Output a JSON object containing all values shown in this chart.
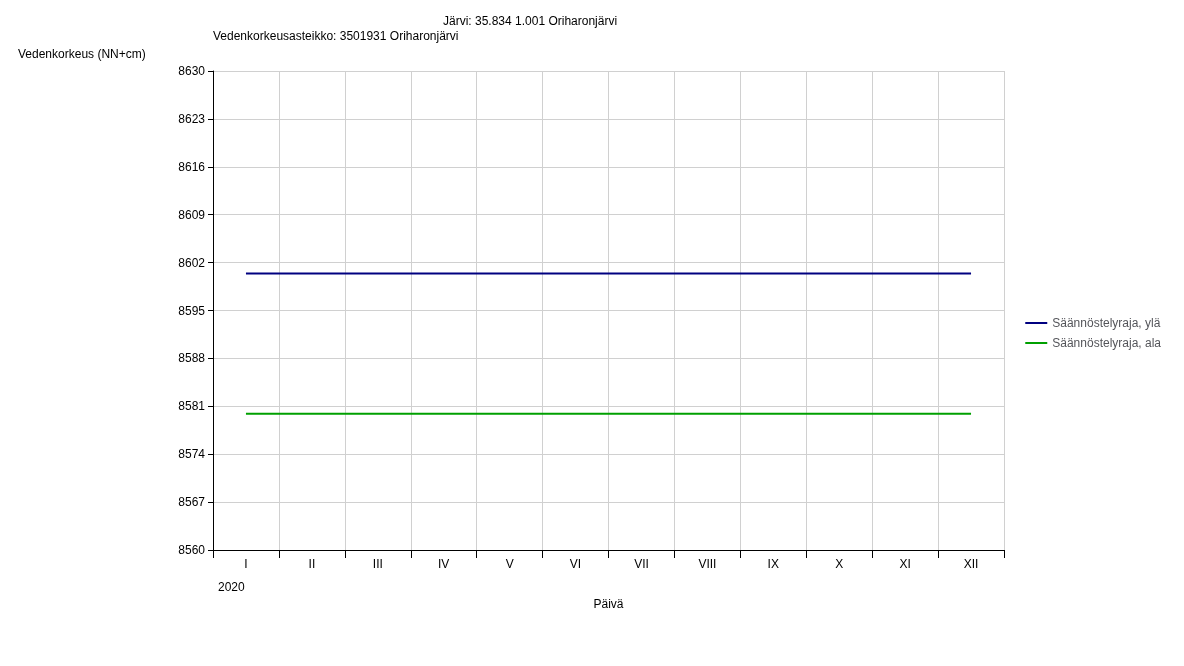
{
  "chart_data": {
    "type": "line",
    "title": "Järvi: 35.834 1.001 Oriharonjärvi",
    "subtitle": "Vedenkorkeusasteikko: 3501931 Oriharonjärvi",
    "ylabel": "Vedenkorkeus (NN+cm)",
    "xlabel": "Päivä",
    "categories": [
      "I",
      "II",
      "III",
      "IV",
      "V",
      "VI",
      "VII",
      "VIII",
      "IX",
      "X",
      "XI",
      "XII"
    ],
    "series": [
      {
        "name": "Säännöstelyraja, ylä",
        "color": "#000080",
        "values": [
          8600.4,
          8600.4,
          8600.4,
          8600.4,
          8600.4,
          8600.4,
          8600.4,
          8600.4,
          8600.4,
          8600.4,
          8600.4,
          8600.4
        ]
      },
      {
        "name": "Säännöstelyraja, ala",
        "color": "#00a000",
        "values": [
          8579.9,
          8579.9,
          8579.9,
          8579.9,
          8579.9,
          8579.9,
          8579.9,
          8579.9,
          8579.9,
          8579.9,
          8579.9,
          8579.9
        ]
      }
    ],
    "ylim": [
      8560,
      8630
    ],
    "yticks": [
      8560,
      8567,
      8574,
      8581,
      8588,
      8595,
      8602,
      8609,
      8616,
      8623,
      8630
    ],
    "annotations": [
      "2020"
    ],
    "grid": true,
    "legend": "right",
    "marker": "none",
    "line_style": "solid"
  }
}
